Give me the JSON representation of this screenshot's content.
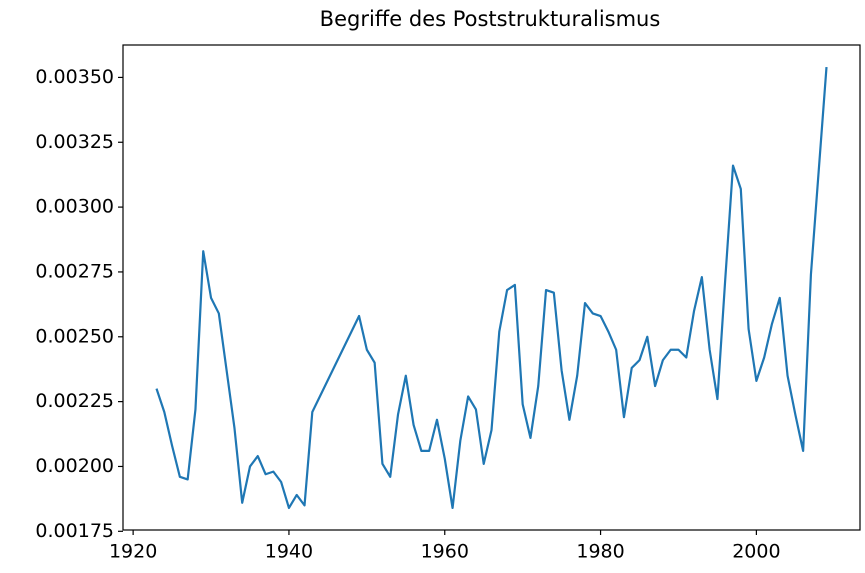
{
  "chart_data": {
    "type": "line",
    "title": "Begriffe des Poststrukturalismus",
    "x": [
      1923,
      1924,
      1925,
      1926,
      1927,
      1928,
      1929,
      1930,
      1931,
      1932,
      1933,
      1934,
      1935,
      1936,
      1937,
      1938,
      1939,
      1940,
      1941,
      1942,
      1943,
      1949,
      1950,
      1951,
      1952,
      1953,
      1954,
      1955,
      1956,
      1957,
      1958,
      1959,
      1960,
      1961,
      1962,
      1963,
      1964,
      1965,
      1966,
      1967,
      1968,
      1969,
      1970,
      1971,
      1972,
      1973,
      1974,
      1975,
      1976,
      1977,
      1978,
      1979,
      1980,
      1981,
      1982,
      1983,
      1984,
      1985,
      1986,
      1987,
      1988,
      1989,
      1990,
      1991,
      1992,
      1993,
      1994,
      1995,
      1996,
      1997,
      1998,
      1999,
      2000,
      2001,
      2002,
      2003,
      2004,
      2005,
      2006,
      2007,
      2009
    ],
    "series": [
      {
        "color": "#1f77b4",
        "values": [
          0.0023,
          0.00221,
          0.00208,
          0.00196,
          0.00195,
          0.00222,
          0.00283,
          0.00265,
          0.00259,
          0.00237,
          0.00215,
          0.00186,
          0.002,
          0.00204,
          0.00197,
          0.00198,
          0.00194,
          0.00184,
          0.00189,
          0.00185,
          0.00221,
          0.00258,
          0.00245,
          0.0024,
          0.00201,
          0.00196,
          0.0022,
          0.00235,
          0.00216,
          0.00206,
          0.00206,
          0.00218,
          0.00203,
          0.00184,
          0.0021,
          0.00227,
          0.00222,
          0.00201,
          0.00214,
          0.00252,
          0.00268,
          0.0027,
          0.00224,
          0.00211,
          0.00231,
          0.00268,
          0.00267,
          0.00237,
          0.00218,
          0.00235,
          0.00263,
          0.00259,
          0.00258,
          0.00252,
          0.00245,
          0.00219,
          0.00238,
          0.00241,
          0.0025,
          0.00231,
          0.00241,
          0.00245,
          0.00245,
          0.00242,
          0.0026,
          0.00273,
          0.00245,
          0.00226,
          0.00272,
          0.00316,
          0.00307,
          0.00253,
          0.00233,
          0.00242,
          0.00255,
          0.00265,
          0.00235,
          0.0022,
          0.00206,
          0.00274,
          0.00354
        ]
      }
    ],
    "xlim": [
      1918.7,
      2013.3
    ],
    "xticks": [
      1920,
      1940,
      1960,
      1980,
      2000
    ],
    "ylim": [
      0.001755,
      0.003625
    ],
    "yticks": [
      0.00175,
      {
        "value": 0.002,
        "label": "0.00200"
      },
      0.00225,
      {
        "value": 0.0025,
        "label": "0.00250"
      },
      0.00275,
      {
        "value": 0.003,
        "label": "0.00300"
      },
      0.00325,
      {
        "value": 0.0035,
        "label": "0.00350"
      }
    ]
  }
}
